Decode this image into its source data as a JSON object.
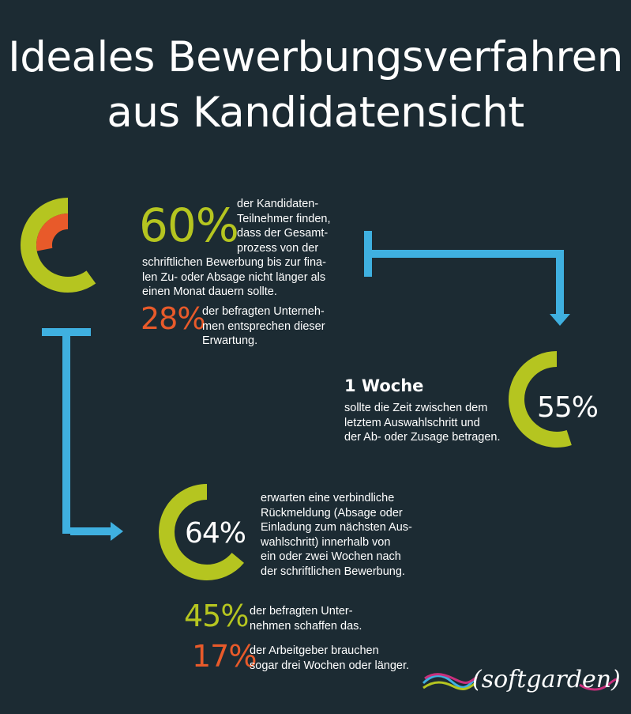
{
  "title": {
    "lines": [
      "Ideales Bewerbungsverfahren",
      "aus Kandidatensicht"
    ]
  },
  "colors": {
    "background": "#1c2b33",
    "green": "#b5c520",
    "orange": "#e85a2a",
    "blue": "#3fb0e0",
    "text": "#ffffff"
  },
  "block1": {
    "big_value": "60%",
    "text_lines": [
      "der Kandidaten-",
      "Teilnehmer finden,",
      "dass der Gesamt-",
      "prozess von der",
      "schriftlichen Bewerbung bis zur fina-",
      "len Zu- oder Absage nicht länger als",
      "einen Monat dauern sollte."
    ],
    "sub_value": "28%",
    "sub_lines": [
      "der befragten Unterneh-",
      "men entsprechen dieser",
      "Erwartung."
    ],
    "ring_green_fraction": 0.6,
    "ring_orange_fraction": 0.28
  },
  "block2": {
    "heading": "1 Woche",
    "text_lines": [
      "sollte die Zeit zwischen dem",
      "letztem Auswahlschritt und",
      "der Ab- oder Zusage betragen."
    ],
    "ring_value": "55%",
    "ring_fraction": 0.55
  },
  "block3": {
    "ring_value": "64%",
    "ring_fraction": 0.64,
    "text_lines": [
      "erwarten eine verbindliche",
      "Rückmeldung (Absage oder",
      "Einladung zum nächsten Aus-",
      "wahlschritt) innerhalb von",
      "ein oder zwei Wochen nach",
      "der schriftlichen Bewerbung."
    ],
    "stat1_value": "45%",
    "stat1_lines": [
      "der befragten Unter-",
      "nehmen schaffen das."
    ],
    "stat2_value": "17%",
    "stat2_lines": [
      "der Arbeitgeber brauchen",
      "sogar drei Wochen oder länger."
    ]
  },
  "logo": {
    "text": "softgarden"
  }
}
